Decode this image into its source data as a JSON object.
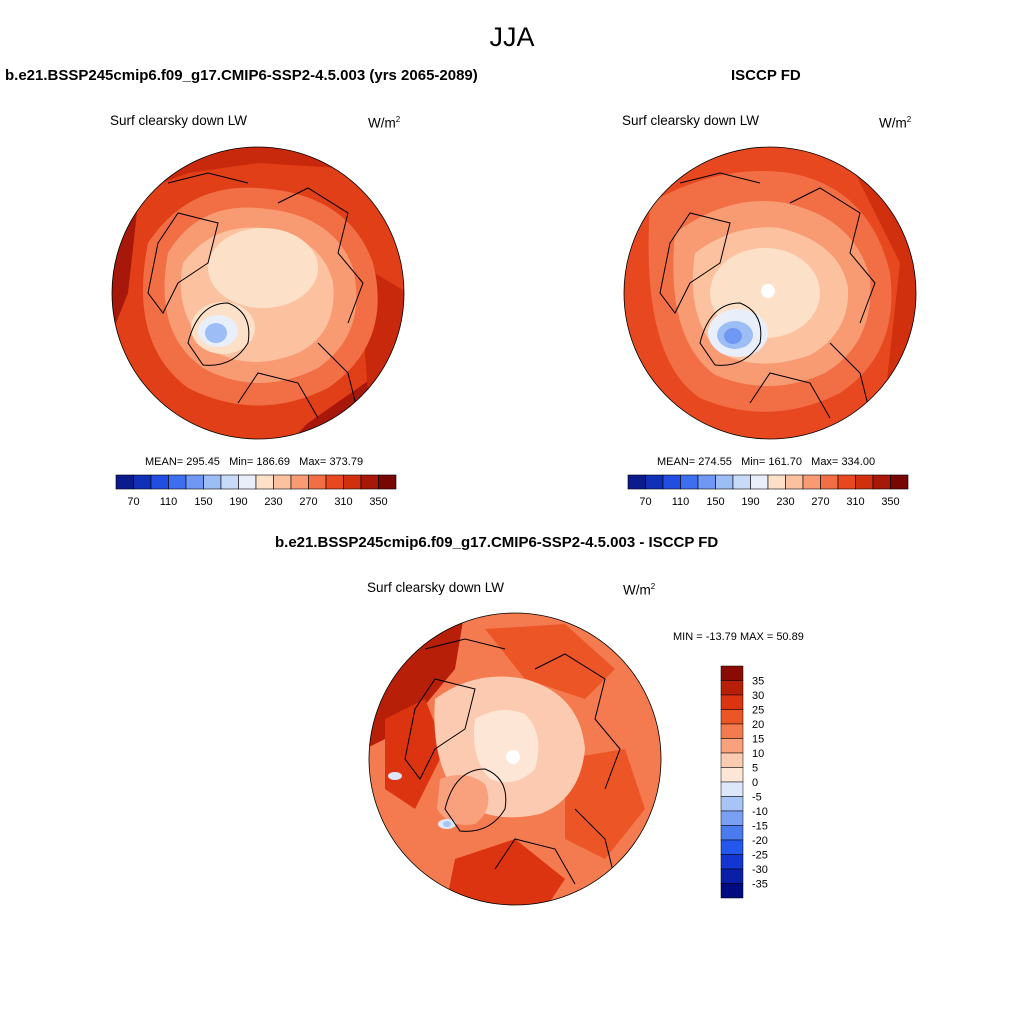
{
  "season": "JJA",
  "panel_model": {
    "title": "b.e21.BSSP245cmip6.f09_g17.CMIP6-SSP2-4.5.003 (yrs 2065-2089)",
    "subtitle": "Surf clearsky down LW",
    "units_base": "W/m",
    "units_exp": "2",
    "stats": {
      "mean_label": "MEAN=",
      "mean": "295.45",
      "min_label": "Min=",
      "min": "186.69",
      "max_label": "Max=",
      "max": "373.79"
    }
  },
  "panel_obs": {
    "title": "ISCCP FD",
    "subtitle": "Surf clearsky down LW",
    "units_base": "W/m",
    "units_exp": "2",
    "stats": {
      "mean_label": "MEAN=",
      "mean": "274.55",
      "min_label": "Min=",
      "min": "161.70",
      "max_label": "Max=",
      "max": "334.00"
    }
  },
  "panel_diff": {
    "title": "b.e21.BSSP245cmip6.f09_g17.CMIP6-SSP2-4.5.003 - ISCCP FD",
    "subtitle": "Surf clearsky down LW",
    "units_base": "W/m",
    "units_exp": "2",
    "minmax_label": "MIN = -13.79 MAX =  50.89"
  },
  "chart_data": [
    {
      "type": "heatmap",
      "projection": "north polar stereographic",
      "title": "b.e21.BSSP245cmip6.f09_g17.CMIP6-SSP2-4.5.003 (yrs 2065-2089)",
      "variable": "Surf clearsky down LW",
      "units": "W/m2",
      "mean": 295.45,
      "min": 186.69,
      "max": 373.79,
      "colorbar": {
        "orientation": "horizontal",
        "levels": [
          70,
          90,
          110,
          130,
          150,
          170,
          190,
          210,
          230,
          250,
          270,
          290,
          310,
          330,
          350
        ],
        "tick_labels": [
          "70",
          "110",
          "150",
          "190",
          "230",
          "270",
          "310",
          "350"
        ],
        "colors": [
          "#0b1a8c",
          "#1030b8",
          "#1f4ee0",
          "#3e6ef0",
          "#6e98f3",
          "#9dbdf6",
          "#c8daf8",
          "#e8eefa",
          "#fde0c8",
          "#fcc2a0",
          "#f89a72",
          "#f26f45",
          "#e8481f",
          "#d0300e",
          "#a8180a",
          "#780704"
        ]
      }
    },
    {
      "type": "heatmap",
      "projection": "north polar stereographic",
      "title": "ISCCP FD",
      "variable": "Surf clearsky down LW",
      "units": "W/m2",
      "mean": 274.55,
      "min": 161.7,
      "max": 334.0,
      "colorbar": {
        "orientation": "horizontal",
        "levels": [
          70,
          90,
          110,
          130,
          150,
          170,
          190,
          210,
          230,
          250,
          270,
          290,
          310,
          330,
          350
        ],
        "tick_labels": [
          "70",
          "110",
          "150",
          "190",
          "230",
          "270",
          "310",
          "350"
        ],
        "colors": [
          "#0b1a8c",
          "#1030b8",
          "#1f4ee0",
          "#3e6ef0",
          "#6e98f3",
          "#9dbdf6",
          "#c8daf8",
          "#e8eefa",
          "#fde0c8",
          "#fcc2a0",
          "#f89a72",
          "#f26f45",
          "#e8481f",
          "#d0300e",
          "#a8180a",
          "#780704"
        ]
      }
    },
    {
      "type": "heatmap",
      "projection": "north polar stereographic",
      "title": "b.e21.BSSP245cmip6.f09_g17.CMIP6-SSP2-4.5.003 - ISCCP FD",
      "variable": "Surf clearsky down LW",
      "units": "W/m2",
      "min": -13.79,
      "max": 50.89,
      "colorbar": {
        "orientation": "vertical",
        "levels": [
          -35,
          -30,
          -25,
          -20,
          -15,
          -10,
          -5,
          0,
          5,
          10,
          15,
          20,
          25,
          30,
          35
        ],
        "tick_labels": [
          "-35",
          "-30",
          "-25",
          "-20",
          "-15",
          "-10",
          "-5",
          "0",
          "5",
          "10",
          "15",
          "20",
          "25",
          "30",
          "35"
        ],
        "colors": [
          "#000b80",
          "#0a1fa8",
          "#1436d0",
          "#2457ec",
          "#4a7cf0",
          "#7aa0f3",
          "#a8c4f6",
          "#dce8fa",
          "#fde6d6",
          "#fccab0",
          "#f9a07c",
          "#f47a50",
          "#ec5526",
          "#dc3410",
          "#b81f08",
          "#8a0b04"
        ]
      }
    }
  ]
}
